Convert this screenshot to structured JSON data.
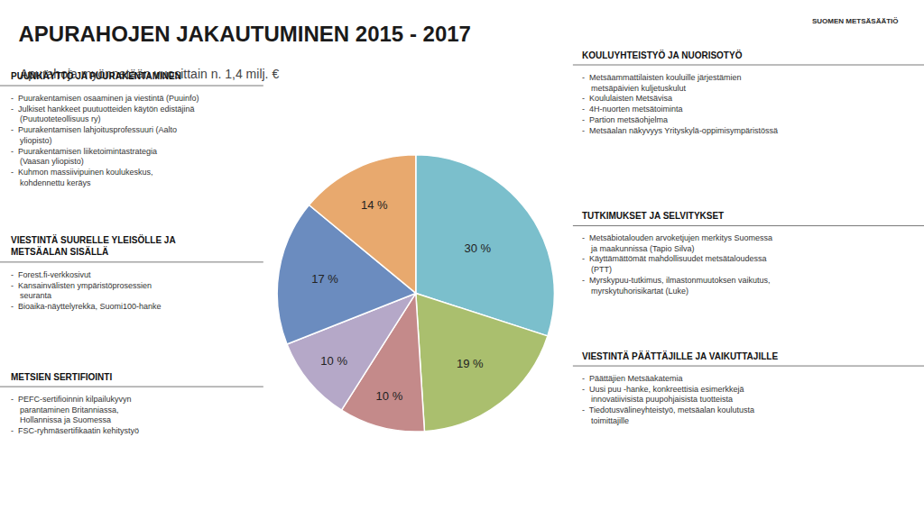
{
  "chart_data": {
    "type": "pie",
    "title": "APURAHOJEN JAKAUTUMINEN 2015 - 2017",
    "subtitle": "Apurahoja myönnetään vuosittain n. 1,4 milj. €",
    "categories": [
      "KOULUYHTEISTYÖ JA NUORISOTYÖ",
      "VIESTINTÄ PÄÄTTÄJILLE JA VAIKUTTAJILLE",
      "TUTKIMUKSET JA SELVITYKSET",
      "METSIEN SERTIFIOINTI",
      "VIESTINTÄ SUURELLE YLEISÖLLE JA\nMETSÄALAN SISÄLLÄ",
      "PUUNKÄYTTÖ JA PUURAKENTAMINEN"
    ],
    "values": [
      30,
      19,
      10,
      10,
      17,
      14
    ],
    "value_labels": [
      "30 %",
      "19 %",
      "10 %",
      "10 %",
      "17 %",
      "14 %"
    ],
    "colors": [
      "#7bbfcc",
      "#aabf6e",
      "#c48a8a",
      "#b5a8c8",
      "#6b8cbf",
      "#e8a96e"
    ],
    "data_labels": true,
    "annotations": [
      {
        "items": [
          "-  Metsäammattilaisten kouluille järjestämien\nmetsäpäivien kuljetuskulut",
          "-  Koululaisten Metsävisa",
          "-  4H-nuorten metsätoiminta",
          "-  Partion metsäohjelma",
          "-  Metsäalan näkyvyys Yrityskylä-oppimisympäristössä"
        ]
      },
      {
        "items": [
          "-  Päättäjien Metsäakatemia",
          "-  Uusi puu -hanke, konkreettisia esimerkkejä\ninnovatiivisista puupohjaisista tuotteista",
          "-  Tiedotusvälineyhteistyö, metsäalan koulutusta\ntoimittajille"
        ]
      },
      {
        "items": [
          "-  Metsäbiotalouden arvoketjujen merkitys Suomessa\nja maakunnissa (Tapio Silva)",
          "-  Käyttämättömät mahdollisuudet metsätaloudessa\n(PTT)",
          "-  Myrskypuu-tutkimus, ilmastonmuutoksen vaikutus,\nmyrskytuhorisikartat (Luke)"
        ]
      },
      {
        "items": [
          "-  PEFC-sertifioinnin kilpailukyvyn\nparantaminen Britanniassa,\nHollannissa ja Suomessa",
          "-  FSC-ryhmäsertifikaatin kehitystyö"
        ]
      },
      {
        "items": [
          "-  Forest.fi-verkkosivut",
          "-  Kansainvälisten ympäristöprosessien\nseuranta",
          "-  Bioaika-näyttelyrekka, Suomi100-hanke"
        ]
      },
      {
        "items": [
          "-  Puurakentamisen osaaminen ja viestintä (Puuinfo)",
          "-  Julkiset hankkeet puutuotteiden käytön edistäjinä\n(Puutuoteteollisuus ry)",
          "-  Puurakentamisen lahjoitusprofessuuri (Aalto\nyliopisto)",
          "-  Puurakentamisen liiketoimintastrategia\n(Vaasan yliopisto)",
          "-  Kuhmon massiivipuinen koulukeskus,\nkohdennettu keräys"
        ]
      },
      {
        "text": "SUOMEN METSÄSÄÄTIÖ"
      }
    ]
  }
}
